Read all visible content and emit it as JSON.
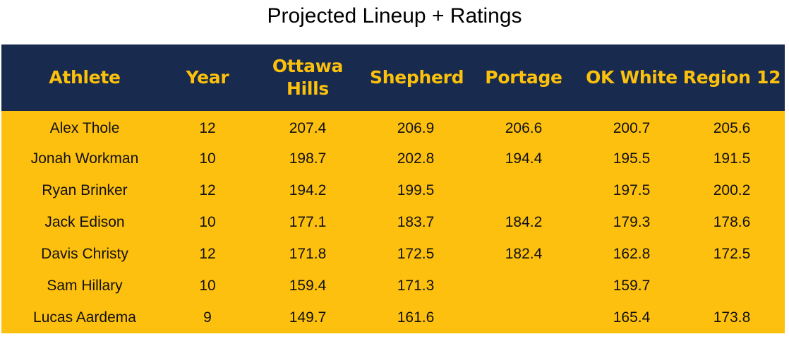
{
  "title": "Projected Lineup + Ratings",
  "table": {
    "headers": [
      "Athlete",
      "Year",
      "Ottawa Hills",
      "Shepherd",
      "Portage",
      "OK White",
      "Region 12"
    ],
    "rows": [
      [
        "Alex Thole",
        "12",
        "207.4",
        "206.9",
        "206.6",
        "200.7",
        "205.6"
      ],
      [
        "Jonah Workman",
        "10",
        "198.7",
        "202.8",
        "194.4",
        "195.5",
        "191.5"
      ],
      [
        "Ryan Brinker",
        "12",
        "194.2",
        "199.5",
        "",
        "197.5",
        "200.2"
      ],
      [
        "Jack Edison",
        "10",
        "177.1",
        "183.7",
        "184.2",
        "179.3",
        "178.6"
      ],
      [
        "Davis Christy",
        "12",
        "171.8",
        "172.5",
        "182.4",
        "162.8",
        "172.5"
      ],
      [
        "Sam Hillary",
        "10",
        "159.4",
        "171.3",
        "",
        "159.7",
        ""
      ],
      [
        "Lucas Aardema",
        "9",
        "149.7",
        "161.6",
        "",
        "165.4",
        "173.8"
      ]
    ]
  },
  "colors": {
    "header_bg": "#182a4e",
    "header_text": "#fcc10c",
    "body_bg": "#fec00f"
  }
}
